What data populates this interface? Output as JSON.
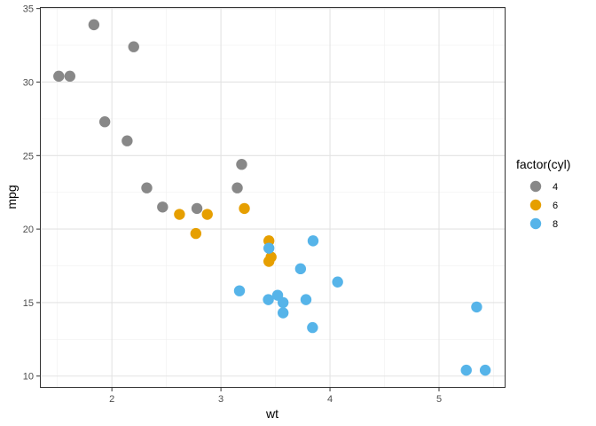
{
  "chart_data": {
    "type": "scatter",
    "xlabel": "wt",
    "ylabel": "mpg",
    "xlim": [
      1.34,
      5.61
    ],
    "ylim": [
      9.2,
      35.1
    ],
    "x_ticks": [
      2,
      3,
      4,
      5
    ],
    "y_ticks": [
      10,
      15,
      20,
      25,
      30,
      35
    ],
    "grid": true,
    "legend": {
      "title": "factor(cyl)",
      "placement": "right",
      "entries": [
        "4",
        "6",
        "8"
      ]
    },
    "colors": {
      "4": "#888888",
      "6": "#E69F00",
      "8": "#56B4E9"
    },
    "series": [
      {
        "name": "4",
        "points": [
          [
            1.513,
            30.4
          ],
          [
            1.615,
            30.4
          ],
          [
            1.835,
            33.9
          ],
          [
            1.935,
            27.3
          ],
          [
            2.14,
            26.0
          ],
          [
            2.2,
            32.4
          ],
          [
            2.32,
            22.8
          ],
          [
            2.465,
            21.5
          ],
          [
            2.78,
            21.4
          ],
          [
            3.15,
            22.8
          ],
          [
            3.19,
            24.4
          ]
        ]
      },
      {
        "name": "6",
        "points": [
          [
            2.62,
            21.0
          ],
          [
            2.77,
            19.7
          ],
          [
            2.875,
            21.0
          ],
          [
            3.215,
            21.4
          ],
          [
            3.44,
            19.2
          ],
          [
            3.44,
            17.8
          ],
          [
            3.46,
            18.1
          ]
        ]
      },
      {
        "name": "8",
        "points": [
          [
            3.17,
            15.8
          ],
          [
            3.435,
            15.2
          ],
          [
            3.44,
            18.7
          ],
          [
            3.52,
            15.5
          ],
          [
            3.57,
            14.3
          ],
          [
            3.57,
            15.0
          ],
          [
            3.73,
            17.3
          ],
          [
            3.78,
            15.2
          ],
          [
            3.84,
            13.3
          ],
          [
            3.845,
            19.2
          ],
          [
            4.07,
            16.4
          ],
          [
            5.25,
            10.4
          ],
          [
            5.345,
            14.7
          ],
          [
            5.424,
            10.4
          ]
        ]
      }
    ]
  }
}
